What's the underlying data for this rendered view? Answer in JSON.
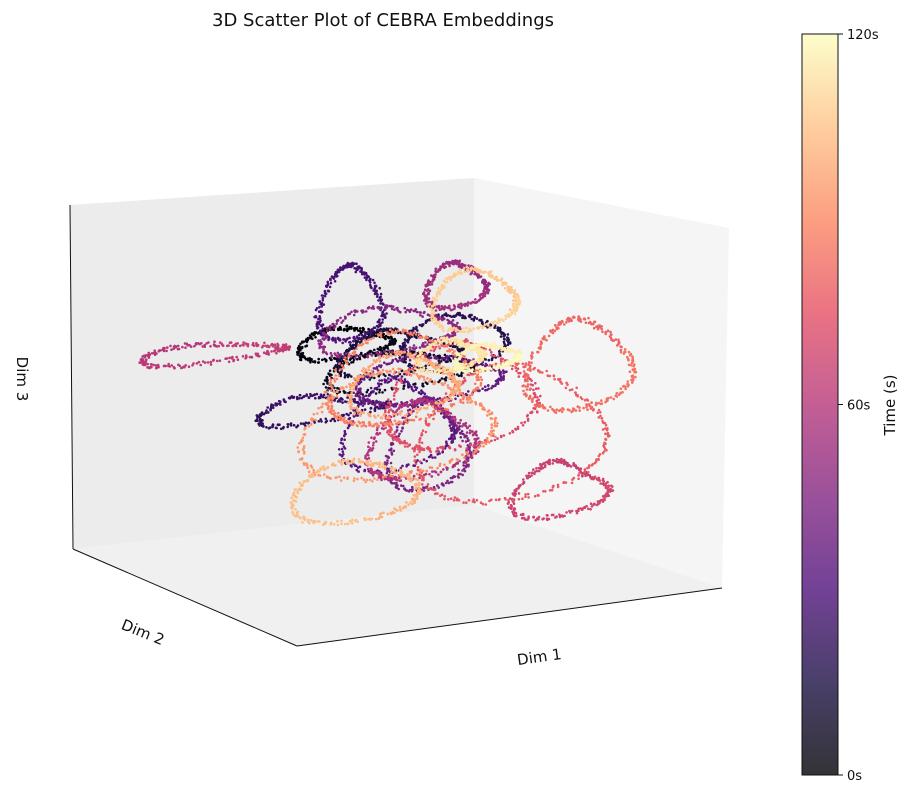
{
  "chart_data": {
    "type": "scatter",
    "projection": "3d",
    "title": "3D Scatter Plot of CEBRA Embeddings",
    "xlabel": "Dim 1",
    "ylabel": "Dim 2",
    "zlabel": "Dim 3",
    "axis_ticks_visible": false,
    "grid": false,
    "colorbar": {
      "label": "Time (s)",
      "colormap": "magma",
      "range": [
        0,
        120
      ],
      "ticks": [
        {
          "value": 0,
          "label": "0s"
        },
        {
          "value": 60,
          "label": "60s"
        },
        {
          "value": 120,
          "label": "120s"
        }
      ]
    },
    "color_stops": [
      "#000004",
      "#1c1044",
      "#4f127b",
      "#812581",
      "#b5367a",
      "#e55064",
      "#fb8761",
      "#fec287",
      "#fcfdbf"
    ],
    "series": [
      {
        "t0": 0,
        "t1": 5,
        "cx": -0.15,
        "cy": 0.3,
        "cz": 0.52,
        "rx": 0.22,
        "ry": 0.12,
        "rz": 0.1,
        "turns": 1.0
      },
      {
        "t0": 5,
        "t1": 10,
        "cx": 0.1,
        "cy": 0.25,
        "cz": 0.3,
        "rx": 0.35,
        "ry": 0.15,
        "rz": 0.12,
        "turns": 1.2
      },
      {
        "t0": 10,
        "t1": 15,
        "cx": 0.05,
        "cy": 0.1,
        "cz": 0.4,
        "rx": 0.28,
        "ry": 0.2,
        "rz": 0.14,
        "turns": 1.3
      },
      {
        "t0": 15,
        "t1": 20,
        "cx": 0.35,
        "cy": 0.2,
        "cz": 0.45,
        "rx": 0.25,
        "ry": 0.1,
        "rz": 0.18,
        "turns": 1.1
      },
      {
        "t0": 20,
        "t1": 25,
        "cx": -0.35,
        "cy": 0.0,
        "cz": 0.05,
        "rx": 0.3,
        "ry": 0.18,
        "rz": 0.08,
        "turns": 1.0
      },
      {
        "t0": 25,
        "t1": 30,
        "cx": -0.2,
        "cy": 0.05,
        "cz": 0.75,
        "rx": 0.15,
        "ry": 0.1,
        "rz": 0.25,
        "turns": 1.0
      },
      {
        "t0": 30,
        "t1": 35,
        "cx": 0.0,
        "cy": -0.05,
        "cz": -0.1,
        "rx": 0.25,
        "ry": 0.2,
        "rz": 0.3,
        "turns": 1.2
      },
      {
        "t0": 35,
        "t1": 40,
        "cx": 0.2,
        "cy": 0.1,
        "cz": 0.2,
        "rx": 0.35,
        "ry": 0.12,
        "rz": 0.15,
        "turns": 1.1
      },
      {
        "t0": 40,
        "t1": 45,
        "cx": 0.15,
        "cy": -0.05,
        "cz": -0.25,
        "rx": 0.18,
        "ry": 0.15,
        "rz": 0.3,
        "turns": 1.0
      },
      {
        "t0": 45,
        "t1": 50,
        "cx": 0.0,
        "cy": 0.1,
        "cz": 0.55,
        "rx": 0.32,
        "ry": 0.15,
        "rz": 0.15,
        "turns": 1.2
      },
      {
        "t0": 50,
        "t1": 55,
        "cx": 0.3,
        "cy": 0.0,
        "cz": 0.8,
        "rx": 0.14,
        "ry": 0.1,
        "rz": 0.15,
        "turns": 1.0
      },
      {
        "t0": 55,
        "t1": 60,
        "cx": 0.15,
        "cy": 0.05,
        "cz": -0.2,
        "rx": 0.25,
        "ry": 0.18,
        "rz": 0.25,
        "turns": 1.1
      },
      {
        "t0": 60,
        "t1": 65,
        "cx": -0.85,
        "cy": 0.1,
        "cz": 0.5,
        "rx": 0.35,
        "ry": 0.1,
        "rz": 0.06,
        "turns": 1.0
      },
      {
        "t0": 65,
        "t1": 70,
        "cx": 0.75,
        "cy": -0.2,
        "cz": -0.65,
        "rx": 0.22,
        "ry": 0.18,
        "rz": 0.18,
        "turns": 1.0
      },
      {
        "t0": 70,
        "t1": 75,
        "cx": 0.3,
        "cy": -0.1,
        "cz": 0.05,
        "rx": 0.35,
        "ry": 0.2,
        "rz": 0.35,
        "turns": 1.2
      },
      {
        "t0": 75,
        "t1": 80,
        "cx": 0.6,
        "cy": 0.1,
        "cz": -0.2,
        "rx": 0.45,
        "ry": 0.2,
        "rz": 0.45,
        "turns": 1.0
      },
      {
        "t0": 80,
        "t1": 85,
        "cx": 0.9,
        "cy": 0.0,
        "cz": 0.2,
        "rx": 0.25,
        "ry": 0.15,
        "rz": 0.3,
        "turns": 1.0
      },
      {
        "t0": 85,
        "t1": 90,
        "cx": 0.1,
        "cy": 0.2,
        "cz": 0.25,
        "rx": 0.35,
        "ry": 0.2,
        "rz": 0.3,
        "turns": 1.2
      },
      {
        "t0": 90,
        "t1": 95,
        "cx": 0.0,
        "cy": -0.05,
        "cz": -0.1,
        "rx": 0.45,
        "ry": 0.25,
        "rz": 0.35,
        "turns": 1.0
      },
      {
        "t0": 95,
        "t1": 100,
        "cx": 0.1,
        "cy": 0.2,
        "cz": 0.2,
        "rx": 0.25,
        "ry": 0.15,
        "rz": 0.2,
        "turns": 1.3
      },
      {
        "t0": 100,
        "t1": 105,
        "cx": -0.25,
        "cy": -0.2,
        "cz": -0.55,
        "rx": 0.3,
        "ry": 0.12,
        "rz": 0.2,
        "turns": 1.0
      },
      {
        "t0": 105,
        "t1": 110,
        "cx": 0.4,
        "cy": 0.05,
        "cz": 0.7,
        "rx": 0.2,
        "ry": 0.1,
        "rz": 0.2,
        "turns": 1.1
      },
      {
        "t0": 110,
        "t1": 115,
        "cx": 0.3,
        "cy": 0.1,
        "cz": 0.35,
        "rx": 0.15,
        "ry": 0.1,
        "rz": 0.1,
        "turns": 1.5
      },
      {
        "t0": 115,
        "t1": 120,
        "cx": 0.45,
        "cy": 0.0,
        "cz": 0.3,
        "rx": 0.15,
        "ry": 0.08,
        "rz": 0.08,
        "turns": 1.2
      }
    ]
  }
}
